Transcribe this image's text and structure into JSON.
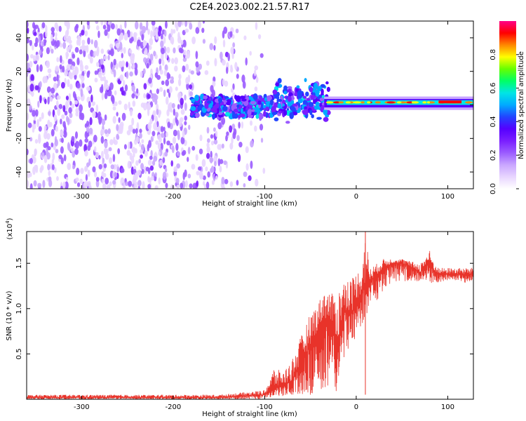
{
  "title": "C2E4.2023.002.21.57.R17",
  "colorbar": {
    "label": "Normalized spectral amplitude",
    "ticks": [
      "0.0",
      "0.2",
      "0.4",
      "0.6",
      "0.8"
    ],
    "tick_values": [
      0.0,
      0.2,
      0.4,
      0.6,
      0.8
    ],
    "range": [
      0,
      1
    ],
    "colormap": [
      "#ffffff",
      "#e8d5ff",
      "#c9a6ff",
      "#9b5cff",
      "#7a1fff",
      "#5500ff",
      "#2244ff",
      "#00aaff",
      "#00e5e5",
      "#00ff66",
      "#66ff00",
      "#ffff00",
      "#ff8800",
      "#ff0000",
      "#ff0088"
    ]
  },
  "chart_data": [
    {
      "type": "heatmap",
      "title": "C2E4.2023.002.21.57.R17",
      "xlabel": "Height of straight line (km)",
      "ylabel": "Frequency (Hz)",
      "xlim": [
        -360,
        128
      ],
      "ylim": [
        -50,
        50
      ],
      "xticks": [
        -300,
        -200,
        -100,
        0,
        100
      ],
      "xtick_labels": [
        "-300",
        "-200",
        "-100",
        "0",
        "100"
      ],
      "yticks": [
        -40,
        -20,
        0,
        20,
        40
      ],
      "ytick_labels": [
        "-40",
        "-20",
        "0",
        "20",
        "40"
      ],
      "regions": [
        {
          "name": "broadband noise",
          "x_range": [
            -360,
            -100
          ],
          "y_range": [
            -50,
            50
          ],
          "amplitude": 0.2
        },
        {
          "name": "signal band",
          "x_range": [
            -180,
            128
          ],
          "y_range": [
            -8,
            5
          ],
          "amplitude": 0.6
        },
        {
          "name": "strong line",
          "x_range": [
            -30,
            128
          ],
          "y_range": [
            0,
            3
          ],
          "amplitude": 0.9
        }
      ],
      "grid": false
    },
    {
      "type": "line",
      "xlabel": "Height of straight line (km)",
      "ylabel": "SNR (10 * v/v)",
      "y_multiplier_label": "(x10",
      "y_multiplier_exp": "4",
      "y_multiplier_close": ")",
      "xlim": [
        -360,
        128
      ],
      "ylim": [
        0,
        1.85
      ],
      "xticks": [
        -300,
        -200,
        -100,
        0,
        100
      ],
      "xtick_labels": [
        "-300",
        "-200",
        "-100",
        "0",
        "100"
      ],
      "yticks": [
        0.5,
        1.0,
        1.5
      ],
      "ytick_labels": [
        "0.5",
        "1.0",
        "1.5"
      ],
      "color": "#e8332a",
      "series": [
        {
          "x": [
            -360,
            -300,
            -250,
            -200,
            -150,
            -100,
            -90,
            -80,
            -70,
            -60,
            -50,
            -40,
            -35,
            -30,
            -25,
            -20,
            -15,
            -10,
            -5,
            0,
            5,
            10,
            15,
            20,
            30,
            40,
            50,
            60,
            70,
            75,
            80,
            85,
            90,
            100,
            110,
            120,
            128
          ],
          "y": [
            0.02,
            0.02,
            0.02,
            0.02,
            0.02,
            0.05,
            0.12,
            0.15,
            0.2,
            0.4,
            0.6,
            0.8,
            0.9,
            0.85,
            0.8,
            0.6,
            0.9,
            1.0,
            0.95,
            1.1,
            1.15,
            1.25,
            1.3,
            1.35,
            1.45,
            1.5,
            1.5,
            1.45,
            1.4,
            1.45,
            1.5,
            1.42,
            1.38,
            1.38,
            1.38,
            1.37,
            1.38
          ],
          "min_values": [
            0.0,
            0.0,
            0.0,
            0.0,
            0.0,
            0.0,
            0.03,
            0.03,
            0.05,
            0.05,
            0.05,
            0.1,
            0.1,
            0.05,
            0.05,
            0.1,
            0.3,
            0.5,
            0.6,
            0.7,
            0.8,
            0.9,
            1.0,
            1.05,
            1.2,
            1.3,
            1.3,
            1.3,
            1.3,
            1.32,
            1.25,
            1.3,
            1.28,
            1.3,
            1.3,
            1.28,
            1.3
          ],
          "max_values": [
            0.05,
            0.05,
            0.05,
            0.05,
            0.05,
            0.1,
            0.35,
            0.3,
            0.45,
            0.7,
            0.95,
            1.1,
            1.2,
            1.2,
            1.15,
            1.2,
            1.3,
            1.35,
            1.35,
            1.4,
            1.45,
            1.85,
            1.45,
            1.48,
            1.55,
            1.55,
            1.55,
            1.52,
            1.5,
            1.58,
            1.65,
            1.5,
            1.45,
            1.45,
            1.45,
            1.45,
            1.45
          ]
        }
      ],
      "grid": false
    }
  ]
}
